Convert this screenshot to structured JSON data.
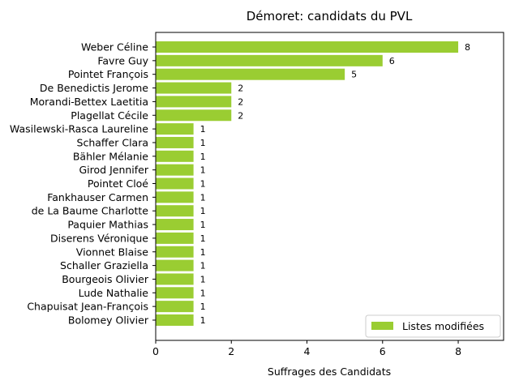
{
  "chart_data": {
    "type": "bar",
    "orientation": "horizontal",
    "title": "Démoret: candidats du PVL",
    "xlabel": "Suffrages des Candidats",
    "ylabel": "",
    "xlim": [
      0,
      9.2
    ],
    "xticks": [
      0,
      2,
      4,
      6,
      8
    ],
    "grid": false,
    "legend_position": "bottom-right",
    "bar_color": "#9ACD32",
    "categories": [
      "Weber Céline",
      "Favre Guy",
      "Pointet François",
      "De Benedictis Jerome",
      "Morandi-Bettex Laetitia",
      "Plagellat Cécile",
      "Wasilewski-Rasca Laureline",
      "Schaffer Clara",
      "Bähler Mélanie",
      "Girod Jennifer",
      "Pointet Cloé",
      "Fankhauser Carmen",
      "de La Baume Charlotte",
      "Paquier Mathias",
      "Diserens Véronique",
      "Vionnet Blaise",
      "Schaller Graziella",
      "Bourgeois Olivier",
      "Lude Nathalie",
      "Chapuisat Jean-François",
      "Bolomey Olivier"
    ],
    "series": [
      {
        "name": "Listes modifiées",
        "values": [
          8,
          6,
          5,
          2,
          2,
          2,
          1,
          1,
          1,
          1,
          1,
          1,
          1,
          1,
          1,
          1,
          1,
          1,
          1,
          1,
          1
        ]
      }
    ]
  }
}
